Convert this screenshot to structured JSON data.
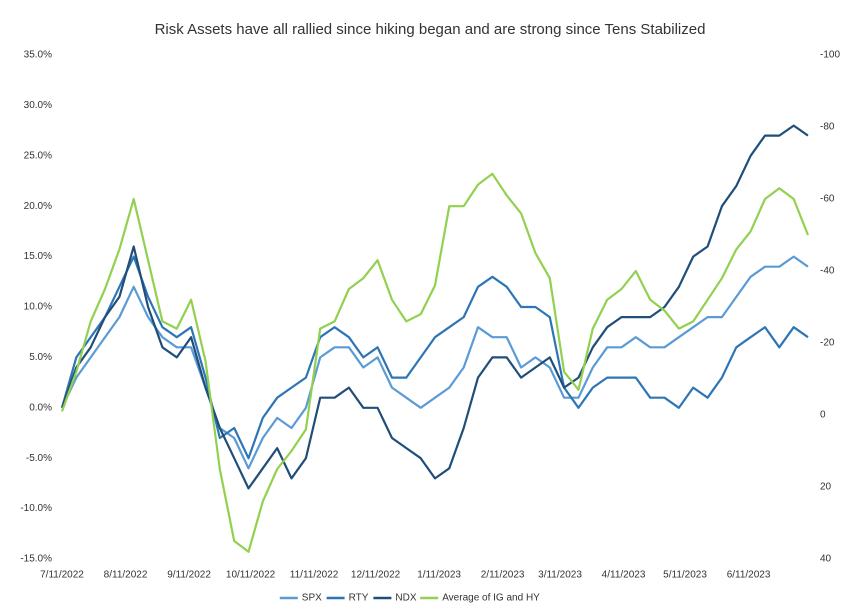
{
  "chart_data": {
    "type": "line",
    "title": "Risk Assets have all rallied since hiking began and are strong since Tens Stabilized",
    "x": [
      "2022-07-11",
      "2022-07-18",
      "2022-07-25",
      "2022-08-01",
      "2022-08-08",
      "2022-08-15",
      "2022-08-22",
      "2022-08-29",
      "2022-09-05",
      "2022-09-12",
      "2022-09-19",
      "2022-09-26",
      "2022-10-03",
      "2022-10-10",
      "2022-10-17",
      "2022-10-24",
      "2022-10-31",
      "2022-11-07",
      "2022-11-14",
      "2022-11-21",
      "2022-11-28",
      "2022-12-05",
      "2022-12-12",
      "2022-12-19",
      "2022-12-26",
      "2023-01-02",
      "2023-01-09",
      "2023-01-16",
      "2023-01-23",
      "2023-01-30",
      "2023-02-06",
      "2023-02-13",
      "2023-02-20",
      "2023-02-27",
      "2023-03-06",
      "2023-03-13",
      "2023-03-20",
      "2023-03-27",
      "2023-04-03",
      "2023-04-10",
      "2023-04-17",
      "2023-04-24",
      "2023-05-01",
      "2023-05-08",
      "2023-05-15",
      "2023-05-22",
      "2023-05-29",
      "2023-06-05",
      "2023-06-12",
      "2023-06-19",
      "2023-06-26",
      "2023-07-03",
      "2023-07-10"
    ],
    "xlim": [
      "2022-07-11",
      "2023-07-10"
    ],
    "xticks": [
      {
        "value": "2022-07-11",
        "label": "7/11/2022"
      },
      {
        "value": "2022-08-11",
        "label": "8/11/2022"
      },
      {
        "value": "2022-09-11",
        "label": "9/11/2022"
      },
      {
        "value": "2022-10-11",
        "label": "10/11/2022"
      },
      {
        "value": "2022-11-11",
        "label": "11/11/2022"
      },
      {
        "value": "2022-12-11",
        "label": "12/11/2022"
      },
      {
        "value": "2023-01-11",
        "label": "1/11/2023"
      },
      {
        "value": "2023-02-11",
        "label": "2/11/2023"
      },
      {
        "value": "2023-03-11",
        "label": "3/11/2023"
      },
      {
        "value": "2023-04-11",
        "label": "4/11/2023"
      },
      {
        "value": "2023-05-11",
        "label": "5/11/2023"
      },
      {
        "value": "2023-06-11",
        "label": "6/11/2023"
      }
    ],
    "ylim": [
      -15,
      35
    ],
    "yticks": [
      {
        "value": -15,
        "label": "-15.0%"
      },
      {
        "value": -10,
        "label": "-10.0%"
      },
      {
        "value": -5,
        "label": "-5.0%"
      },
      {
        "value": 0,
        "label": "0.0%"
      },
      {
        "value": 5,
        "label": "5.0%"
      },
      {
        "value": 10,
        "label": "10.0%"
      },
      {
        "value": 15,
        "label": "15.0%"
      },
      {
        "value": 20,
        "label": "20.0%"
      },
      {
        "value": 25,
        "label": "25.0%"
      },
      {
        "value": 30,
        "label": "30.0%"
      },
      {
        "value": 35,
        "label": "35.0%"
      }
    ],
    "y2lim": [
      40,
      -100
    ],
    "y2ticks": [
      -100,
      -80,
      -60,
      -40,
      -20,
      0,
      20,
      40
    ],
    "legend": "bottom",
    "series": [
      {
        "name": "SPX",
        "color": "#5b9bd5",
        "values": [
          0,
          3,
          5,
          7,
          9,
          12,
          9,
          7,
          6,
          6,
          2,
          -2,
          -3,
          -6,
          -3,
          -1,
          -2,
          0,
          5,
          6,
          6,
          4,
          5,
          2,
          1,
          0,
          1,
          2,
          4,
          8,
          7,
          7,
          4,
          5,
          4,
          1,
          1,
          4,
          6,
          6,
          7,
          6,
          6,
          7,
          8,
          9,
          9,
          11,
          13,
          14,
          14,
          15,
          14
        ]
      },
      {
        "name": "RTY",
        "color": "#2e75b6",
        "values": [
          0,
          5,
          7,
          9,
          12,
          15,
          11,
          8,
          7,
          8,
          3,
          -3,
          -2,
          -5,
          -1,
          1,
          2,
          3,
          7,
          8,
          7,
          5,
          6,
          3,
          3,
          5,
          7,
          8,
          9,
          12,
          13,
          12,
          10,
          10,
          9,
          2,
          0,
          2,
          3,
          3,
          3,
          1,
          1,
          0,
          2,
          1,
          3,
          6,
          7,
          8,
          6,
          8,
          7
        ]
      },
      {
        "name": "NDX",
        "color": "#1f4e79",
        "values": [
          0,
          4,
          6,
          9,
          11,
          16,
          10,
          6,
          5,
          7,
          2,
          -2,
          -5,
          -8,
          -6,
          -4,
          -7,
          -5,
          1,
          1,
          2,
          0,
          0,
          -3,
          -4,
          -5,
          -7,
          -6,
          -2,
          3,
          5,
          5,
          3,
          4,
          5,
          2,
          3,
          6,
          8,
          9,
          9,
          9,
          10,
          12,
          15,
          16,
          20,
          22,
          25,
          27,
          27,
          28,
          27
        ]
      },
      {
        "name": "Average of IG and HY",
        "color": "#92d050",
        "axis": "y2",
        "values": [
          -1,
          -12,
          -26,
          -35,
          -46,
          -60,
          -43,
          -26,
          -24,
          -32,
          -15,
          15,
          35,
          38,
          24,
          15,
          10,
          4,
          -24,
          -26,
          -35,
          -38,
          -43,
          -32,
          -26,
          -28,
          -36,
          -58,
          -58,
          -64,
          -67,
          -61,
          -56,
          -45,
          -38,
          -12,
          -7,
          -24,
          -32,
          -35,
          -40,
          -32,
          -29,
          -24,
          -26,
          -32,
          -38,
          -46,
          -51,
          -60,
          -63,
          -60,
          -50
        ]
      }
    ]
  }
}
